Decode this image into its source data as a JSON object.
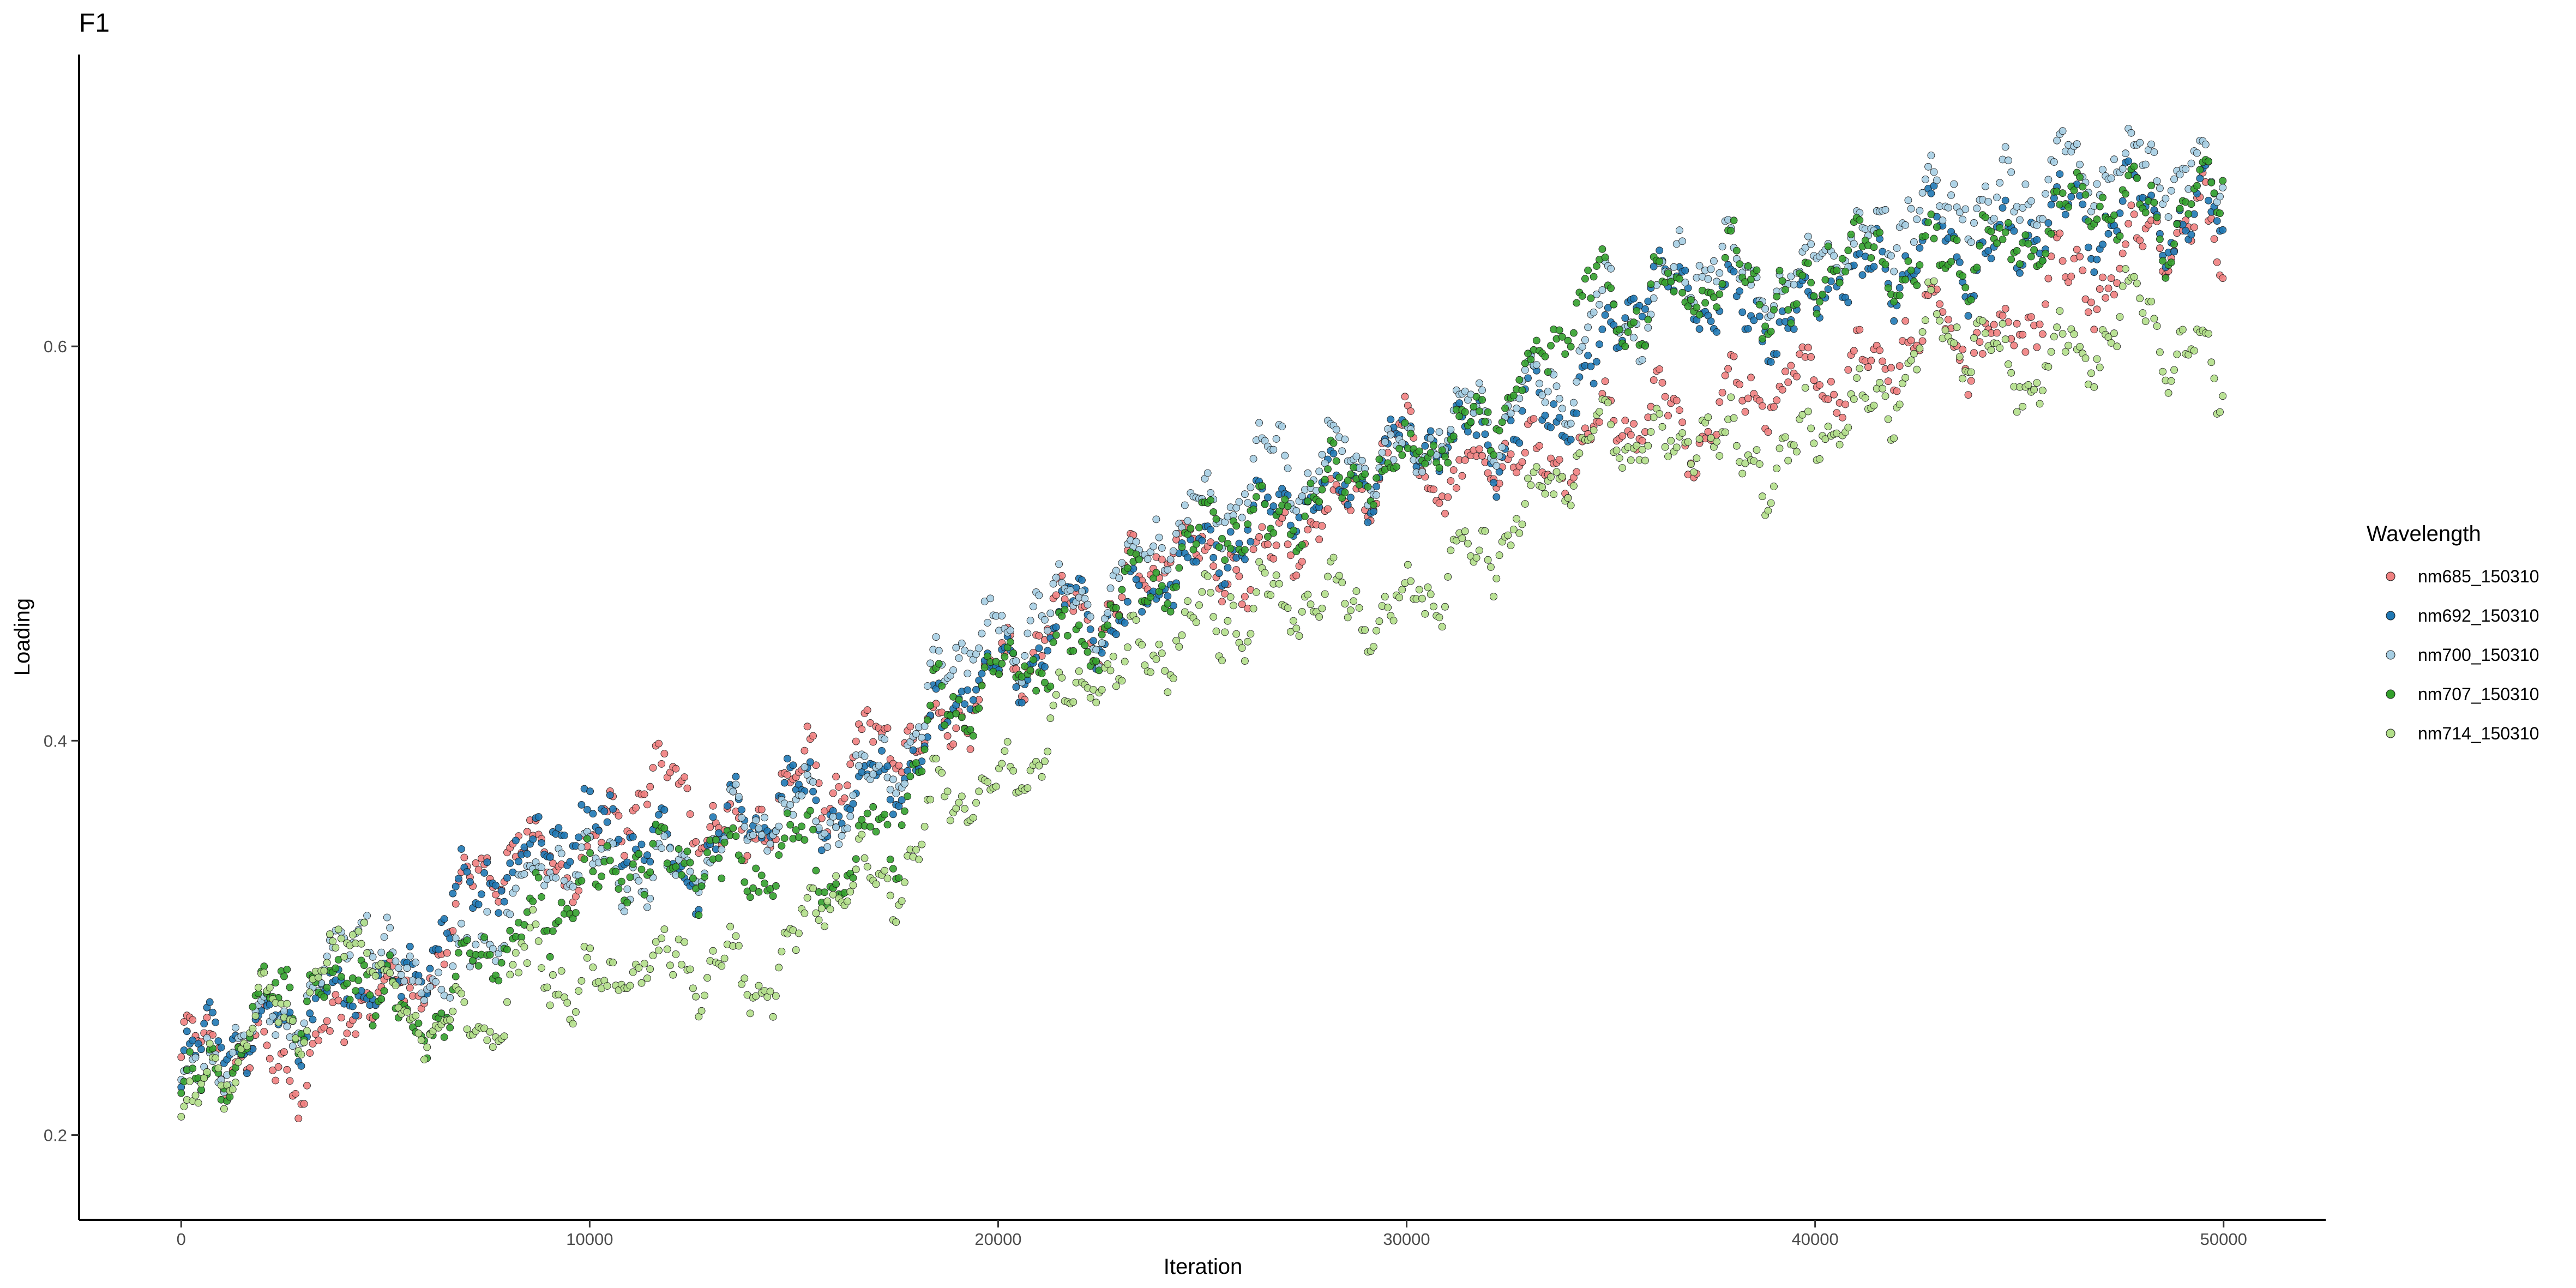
{
  "chart_data": {
    "type": "scatter",
    "title": "F1",
    "xlabel": "Iteration",
    "ylabel": "Loading",
    "xlim": [
      -2500,
      52500
    ],
    "ylim": [
      0.157,
      0.748
    ],
    "x_ticks": [
      0,
      10000,
      20000,
      30000,
      40000,
      50000
    ],
    "y_ticks": [
      0.2,
      0.4,
      0.6
    ],
    "grid": false,
    "legend": {
      "title": "Wavelength",
      "position": "right"
    },
    "series": [
      {
        "name": "nm685_150310",
        "color": "#f08080",
        "x": [
          0,
          2000,
          3000,
          4500,
          5500,
          7000,
          8500,
          10000,
          11000,
          13000,
          15000,
          16500,
          17500,
          18500,
          20000,
          22000,
          25000,
          27000,
          30000,
          32500,
          35000,
          37000,
          39500,
          40500,
          42500,
          45000,
          47500,
          50000
        ],
        "values": [
          0.24,
          0.23,
          0.23,
          0.28,
          0.27,
          0.33,
          0.34,
          0.34,
          0.37,
          0.36,
          0.38,
          0.38,
          0.4,
          0.4,
          0.43,
          0.45,
          0.49,
          0.51,
          0.55,
          0.53,
          0.56,
          0.57,
          0.57,
          0.59,
          0.6,
          0.62,
          0.64,
          0.64
        ]
      },
      {
        "name": "nm692_150310",
        "color": "#1f78b4",
        "x": [
          0,
          2000,
          3000,
          4500,
          5500,
          7000,
          8500,
          10000,
          11000,
          13000,
          15000,
          16500,
          17500,
          18500,
          20000,
          22000,
          25000,
          27000,
          30000,
          32500,
          35000,
          37000,
          39500,
          40500,
          42500,
          45000,
          47500,
          50000
        ],
        "values": [
          0.23,
          0.25,
          0.26,
          0.29,
          0.27,
          0.32,
          0.35,
          0.35,
          0.35,
          0.35,
          0.37,
          0.37,
          0.39,
          0.42,
          0.44,
          0.46,
          0.5,
          0.52,
          0.54,
          0.55,
          0.6,
          0.61,
          0.6,
          0.63,
          0.64,
          0.65,
          0.66,
          0.67
        ]
      },
      {
        "name": "nm700_150310",
        "color": "#a6cee3",
        "x": [
          0,
          2000,
          3000,
          4500,
          5500,
          7000,
          8500,
          10000,
          11000,
          13000,
          15000,
          16500,
          17500,
          18500,
          20000,
          22000,
          25000,
          27000,
          30000,
          32500,
          35000,
          37000,
          39500,
          40500,
          42500,
          45000,
          47500,
          50000
        ],
        "values": [
          0.23,
          0.26,
          0.27,
          0.3,
          0.27,
          0.31,
          0.33,
          0.34,
          0.35,
          0.35,
          0.37,
          0.37,
          0.39,
          0.43,
          0.45,
          0.47,
          0.51,
          0.53,
          0.56,
          0.57,
          0.63,
          0.64,
          0.62,
          0.66,
          0.67,
          0.68,
          0.68,
          0.69
        ]
      },
      {
        "name": "nm707_150310",
        "color": "#33a02c",
        "x": [
          0,
          2000,
          3000,
          4500,
          5500,
          7000,
          8500,
          10000,
          11000,
          13000,
          15000,
          16500,
          17500,
          18500,
          20000,
          22000,
          25000,
          27000,
          30000,
          32500,
          35000,
          37000,
          39500,
          40500,
          42500,
          45000,
          47500,
          50000
        ],
        "values": [
          0.22,
          0.27,
          0.27,
          0.3,
          0.26,
          0.28,
          0.31,
          0.32,
          0.33,
          0.33,
          0.35,
          0.35,
          0.36,
          0.42,
          0.42,
          0.45,
          0.5,
          0.52,
          0.55,
          0.57,
          0.63,
          0.63,
          0.61,
          0.64,
          0.66,
          0.67,
          0.67,
          0.68
        ]
      },
      {
        "name": "nm714_150310",
        "color": "#b2df8a",
        "x": [
          0,
          2000,
          3000,
          4500,
          5500,
          7000,
          8500,
          10000,
          11000,
          13000,
          15000,
          16500,
          17500,
          18500,
          20000,
          22000,
          25000,
          27000,
          30000,
          32500,
          35000,
          37000,
          39500,
          40500,
          42500,
          45000,
          47500,
          50000
        ],
        "values": [
          0.2,
          0.26,
          0.26,
          0.29,
          0.25,
          0.25,
          0.29,
          0.29,
          0.28,
          0.29,
          0.3,
          0.32,
          0.33,
          0.38,
          0.38,
          0.42,
          0.46,
          0.47,
          0.49,
          0.51,
          0.55,
          0.56,
          0.55,
          0.57,
          0.59,
          0.59,
          0.6,
          0.59
        ]
      }
    ]
  }
}
